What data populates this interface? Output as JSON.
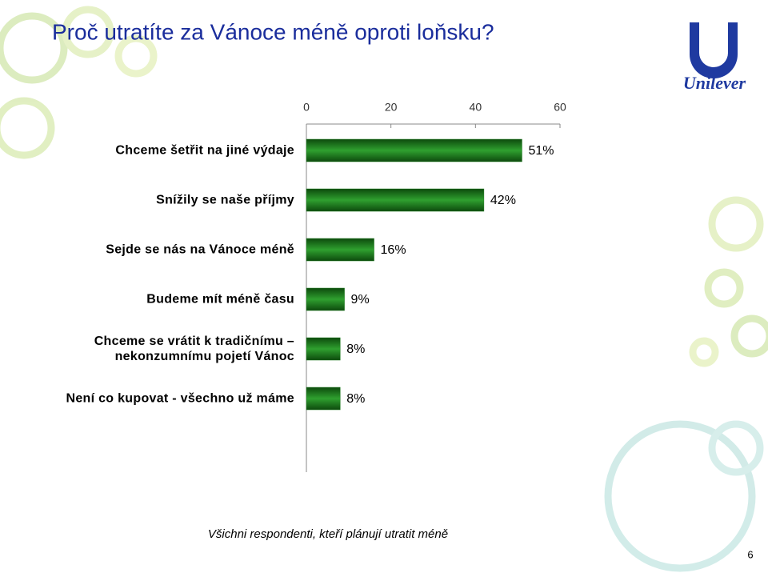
{
  "title": "Proč utratíte za Vánoce méně oproti loňsku?",
  "logo": "Unilever",
  "footnote": "Všichni respondenti, kteří plánují utratit méně",
  "page_number": "6",
  "chart_data": {
    "type": "bar",
    "orientation": "horizontal",
    "color": "#1f7a1f",
    "categories": [
      "Chceme šetřit na jiné výdaje",
      "Snížily se naše příjmy",
      "Sejde se nás na Vánoce méně",
      "Budeme mít méně času",
      "Chceme se vrátit k tradičnímu – nekonzumnímu pojetí Vánoc",
      "Není co kupovat - všechno už máme"
    ],
    "values": [
      51,
      42,
      16,
      9,
      8,
      8
    ],
    "value_labels": [
      "51%",
      "42%",
      "16%",
      "9%",
      "8%",
      "8%"
    ],
    "xlim": [
      0,
      60
    ],
    "xticks": [
      0,
      20,
      40,
      60
    ]
  }
}
